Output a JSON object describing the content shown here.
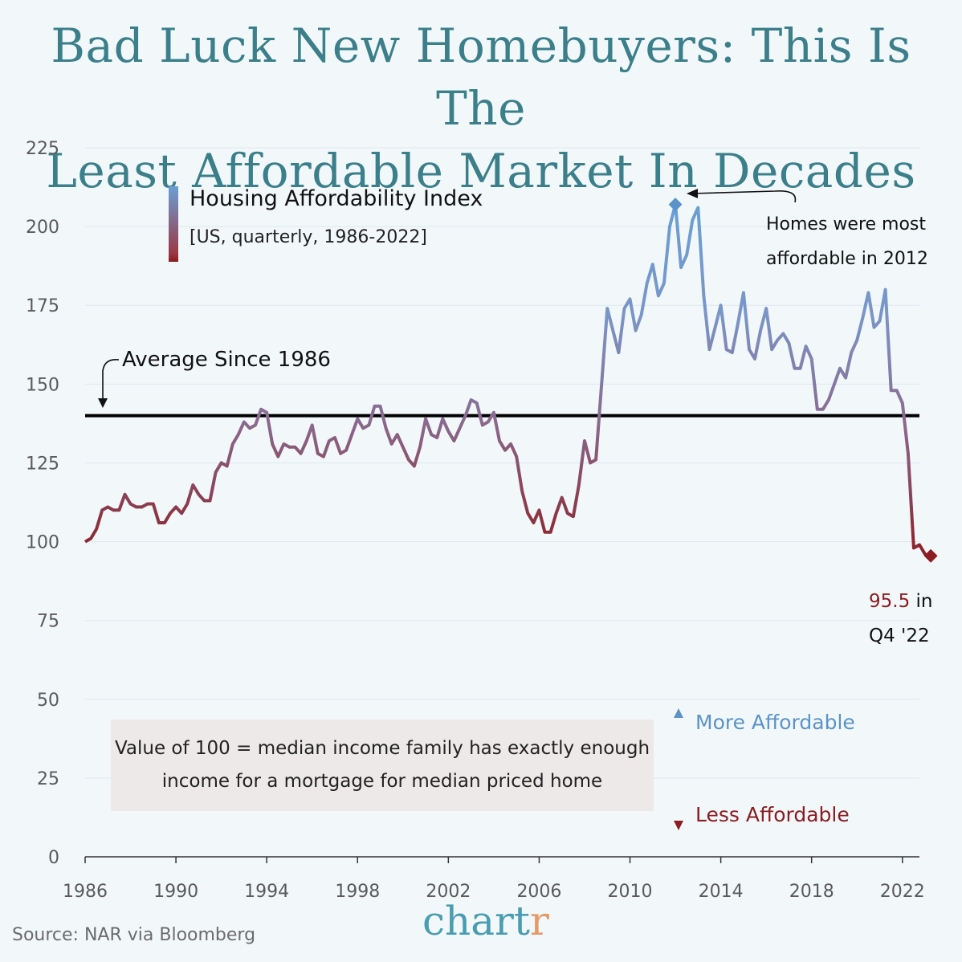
{
  "title_line1": "Bad Luck New Homebuyers: This Is The",
  "title_line2": "Least Affordable Market In Decades",
  "legend": {
    "title": "Housing Affordability Index",
    "subtitle": "[US, quarterly, 1986-2022]"
  },
  "annotations": {
    "average": "Average Since 1986",
    "peak_line1": "Homes were most",
    "peak_line2": "affordable in 2012",
    "end_value": "95.5",
    "end_suffix": " in",
    "end_period": "Q4 '22",
    "note": "Value of 100 = median income family has exactly enough income for a mortgage for median priced home",
    "more": "More Affordable",
    "less": "Less Affordable"
  },
  "footer": {
    "source": "Source: NAR via Bloomberg",
    "brand_main": "chart",
    "brand_r": "r"
  },
  "colors": {
    "high": "#6a9fd3",
    "low": "#8c1d22",
    "title": "#3b7f8b",
    "background": "#f2f8fa"
  },
  "chart_data": {
    "type": "line",
    "title": "Bad Luck New Homebuyers: This Is The Least Affordable Market In Decades",
    "series": [
      {
        "name": "Housing Affordability Index"
      }
    ],
    "xlabel": "",
    "ylabel": "",
    "xlim": [
      1986,
      2022.75
    ],
    "ylim": [
      0,
      225
    ],
    "x_ticks": [
      1986,
      1990,
      1994,
      1998,
      2002,
      2006,
      2010,
      2014,
      2018,
      2022
    ],
    "y_ticks": [
      0,
      25,
      50,
      75,
      100,
      125,
      150,
      175,
      200,
      225
    ],
    "grid": true,
    "average": 140,
    "start_year": 1986,
    "step": 0.25,
    "values": [
      100,
      101,
      104,
      110,
      111,
      110,
      110,
      115,
      112,
      111,
      111,
      112,
      112,
      106,
      106,
      109,
      111,
      109,
      112,
      118,
      115,
      113,
      113,
      122,
      125,
      124,
      131,
      134,
      138,
      136,
      137,
      142,
      141,
      131,
      127,
      131,
      130,
      130,
      128,
      132,
      137,
      128,
      127,
      132,
      133,
      128,
      129,
      134,
      139,
      136,
      137,
      143,
      143,
      136,
      131,
      134,
      130,
      126,
      124,
      130,
      139,
      134,
      133,
      139,
      135,
      132,
      136,
      140,
      145,
      144,
      137,
      138,
      141,
      132,
      129,
      131,
      127,
      116,
      109,
      106,
      110,
      103,
      103,
      109,
      114,
      109,
      108,
      118,
      132,
      125,
      126,
      150,
      174,
      167,
      160,
      174,
      177,
      167,
      172,
      182,
      188,
      178,
      182,
      200,
      207,
      187,
      191,
      202,
      206,
      178,
      161,
      168,
      175,
      161,
      160,
      169,
      179,
      161,
      158,
      167,
      174,
      161,
      164,
      166,
      163,
      155,
      155,
      162,
      158,
      142,
      142,
      145,
      150,
      155,
      152,
      160,
      164,
      171,
      179,
      168,
      170,
      180,
      148,
      148,
      144,
      128,
      98,
      99,
      96,
      95.5
    ],
    "peak": {
      "x": 2012,
      "y": 207
    },
    "end": {
      "label": "Q4 '22",
      "y": 95.5
    }
  }
}
